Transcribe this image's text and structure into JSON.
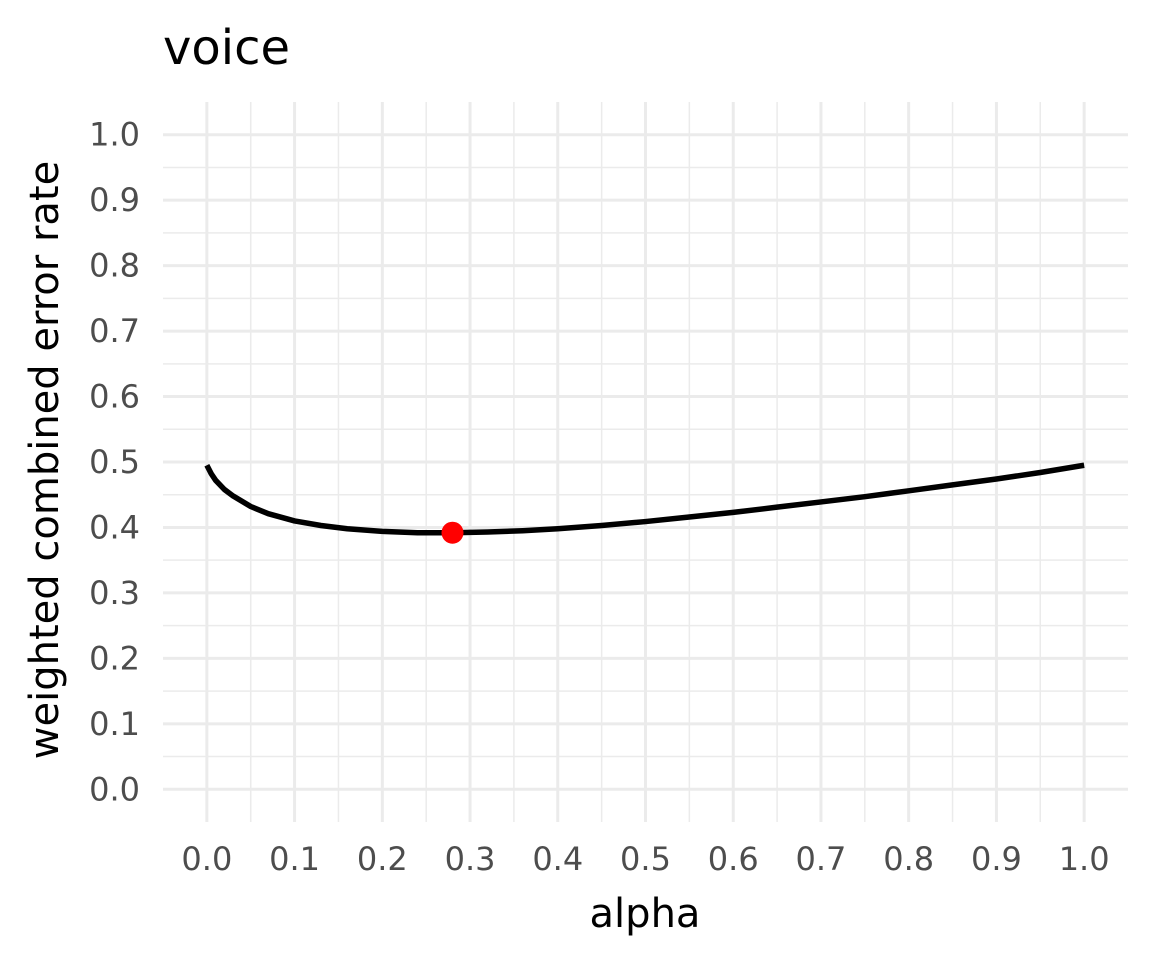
{
  "chart_data": {
    "type": "line",
    "title": "voice",
    "xlabel": "alpha",
    "ylabel": "weighted combined error rate",
    "xlim": [
      -0.05,
      1.05
    ],
    "ylim": [
      -0.05,
      1.05
    ],
    "x_ticks": [
      "0.0",
      "0.1",
      "0.2",
      "0.3",
      "0.4",
      "0.5",
      "0.6",
      "0.7",
      "0.8",
      "0.9",
      "1.0"
    ],
    "y_ticks": [
      "0.0",
      "0.1",
      "0.2",
      "0.3",
      "0.4",
      "0.5",
      "0.6",
      "0.7",
      "0.8",
      "0.9",
      "1.0"
    ],
    "grid": true,
    "series": [
      {
        "x": [
          0.0,
          0.005,
          0.01,
          0.02,
          0.03,
          0.05,
          0.07,
          0.1,
          0.13,
          0.16,
          0.2,
          0.24,
          0.28,
          0.32,
          0.36,
          0.4,
          0.45,
          0.5,
          0.55,
          0.6,
          0.65,
          0.7,
          0.75,
          0.8,
          0.85,
          0.9,
          0.95,
          1.0
        ],
        "y": [
          0.495,
          0.482,
          0.472,
          0.458,
          0.448,
          0.432,
          0.421,
          0.41,
          0.403,
          0.398,
          0.394,
          0.392,
          0.392,
          0.393,
          0.395,
          0.398,
          0.403,
          0.409,
          0.416,
          0.423,
          0.431,
          0.439,
          0.447,
          0.456,
          0.465,
          0.474,
          0.484,
          0.495
        ],
        "color": "#000000"
      }
    ],
    "highlight_point": {
      "x": 0.28,
      "y": 0.392,
      "color": "#ff0000"
    }
  }
}
